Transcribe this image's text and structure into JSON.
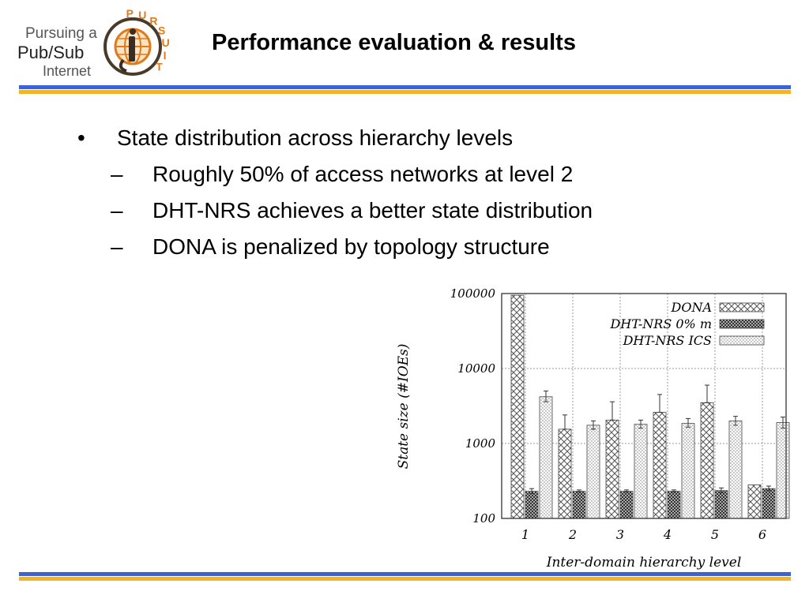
{
  "logo": {
    "line1": "Pursuing a",
    "line2": "Pub/Sub",
    "line3": "Internet",
    "arc_letters": [
      "P",
      "U",
      "R",
      "S",
      "U",
      "I",
      "T"
    ]
  },
  "title": "Performance evaluation & results",
  "bullets": {
    "main": "State distribution across hierarchy levels",
    "subs": [
      "Roughly 50% of access networks at level 2",
      "DHT-NRS achieves a better state distribution",
      "DONA is penalized by topology structure"
    ]
  },
  "colors": {
    "band_blue": "#3b62d6",
    "band_gold": "#f1b52a",
    "logo_orange": "#e07a1a"
  },
  "chart_data": {
    "type": "bar",
    "ylabel": "State size (#IOEs)",
    "xlabel": "Inter-domain hierarchy level",
    "y_scale": "log",
    "ylim": [
      100,
      100000
    ],
    "y_ticks": [
      "100",
      "1000",
      "10000",
      "100000"
    ],
    "categories": [
      "1",
      "2",
      "3",
      "4",
      "5",
      "6"
    ],
    "legend_position": "top-right",
    "series": [
      {
        "name": "DONA",
        "values": [
          95000,
          1550,
          2050,
          2600,
          3500,
          280
        ],
        "err_high": [
          95000,
          2400,
          3600,
          4500,
          6000,
          280
        ],
        "err_low": [
          95000,
          1550,
          2050,
          2600,
          3500,
          280
        ]
      },
      {
        "name": "DHT-NRS 0% m",
        "values": [
          230,
          230,
          230,
          230,
          235,
          250
        ],
        "err_high": [
          250,
          240,
          240,
          240,
          255,
          270
        ],
        "err_low": [
          215,
          225,
          225,
          225,
          220,
          235
        ]
      },
      {
        "name": "DHT-NRS ICS",
        "values": [
          4200,
          1750,
          1800,
          1850,
          2000,
          1900
        ],
        "err_high": [
          5000,
          2000,
          2050,
          2150,
          2300,
          2250
        ],
        "err_low": [
          3600,
          1550,
          1600,
          1650,
          1750,
          1600
        ]
      }
    ]
  }
}
